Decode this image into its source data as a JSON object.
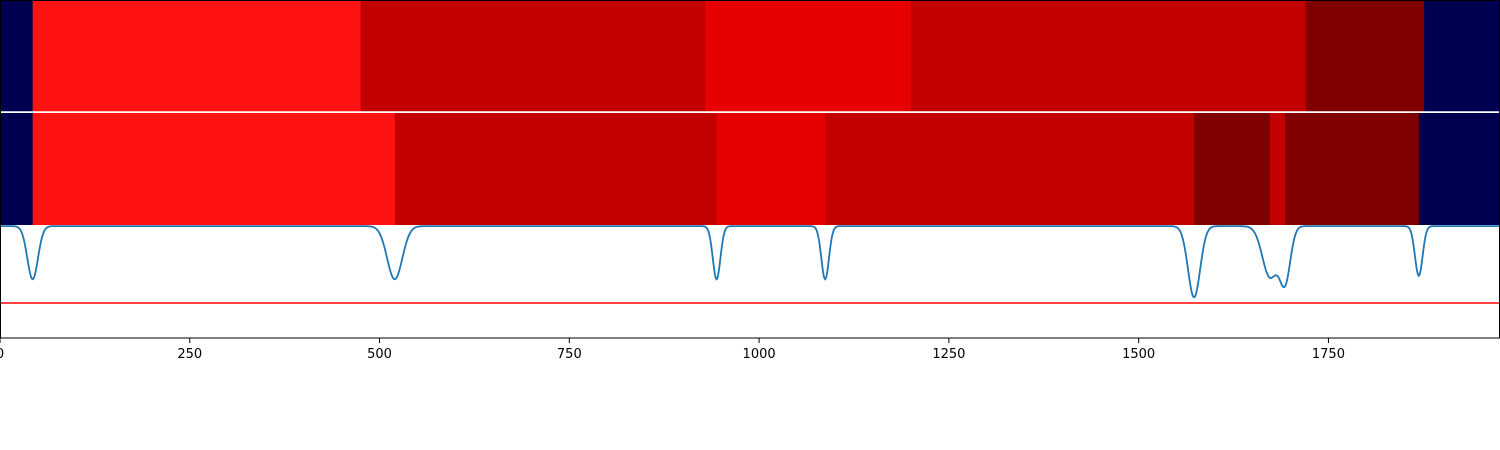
{
  "chart_data": {
    "type": "heatmap",
    "title": "",
    "xlabel": "",
    "ylabel": "",
    "xlim": [
      0,
      1976
    ],
    "x_ticks": [
      0,
      250,
      500,
      750,
      1000,
      1250,
      1500,
      1750
    ],
    "grid": false,
    "legend": "none",
    "colors": {
      "boundary": "#000050",
      "level_1": "#ff1212",
      "level_2": "#c20000",
      "level_3": "#e60000",
      "level_4": "#800000",
      "signal_line": "#1f77b4",
      "threshold_line": "#ff0000"
    },
    "tracks": [
      {
        "segments": [
          {
            "start": 0,
            "end": 43,
            "class": "boundary"
          },
          {
            "start": 43,
            "end": 475,
            "class": "level_1"
          },
          {
            "start": 475,
            "end": 929,
            "class": "level_2"
          },
          {
            "start": 929,
            "end": 1200,
            "class": "level_3"
          },
          {
            "start": 1200,
            "end": 1720,
            "class": "level_2"
          },
          {
            "start": 1720,
            "end": 1876,
            "class": "level_4"
          },
          {
            "start": 1876,
            "end": 1976,
            "class": "boundary"
          }
        ]
      },
      {
        "segments": [
          {
            "start": 0,
            "end": 43,
            "class": "boundary"
          },
          {
            "start": 43,
            "end": 520,
            "class": "level_1"
          },
          {
            "start": 520,
            "end": 944,
            "class": "level_2"
          },
          {
            "start": 944,
            "end": 1087,
            "class": "level_3"
          },
          {
            "start": 1087,
            "end": 1573,
            "class": "level_2"
          },
          {
            "start": 1573,
            "end": 1673,
            "class": "level_4"
          },
          {
            "start": 1673,
            "end": 1693,
            "class": "level_2"
          },
          {
            "start": 1693,
            "end": 1869,
            "class": "level_4"
          },
          {
            "start": 1869,
            "end": 1976,
            "class": "boundary"
          }
        ]
      }
    ],
    "signal": {
      "ylim": [
        0,
        1
      ],
      "baseline": 0.99,
      "threshold": 0.31,
      "dips": [
        {
          "x": 43,
          "depth": 0.47,
          "width": 7
        },
        {
          "x": 520,
          "depth": 0.47,
          "width": 10
        },
        {
          "x": 944,
          "depth": 0.47,
          "width": 5
        },
        {
          "x": 1087,
          "depth": 0.47,
          "width": 5
        },
        {
          "x": 1573,
          "depth": 0.63,
          "width": 8
        },
        {
          "x": 1673,
          "depth": 0.45,
          "width": 10
        },
        {
          "x": 1693,
          "depth": 0.47,
          "width": 7
        },
        {
          "x": 1869,
          "depth": 0.44,
          "width": 5
        }
      ]
    }
  }
}
